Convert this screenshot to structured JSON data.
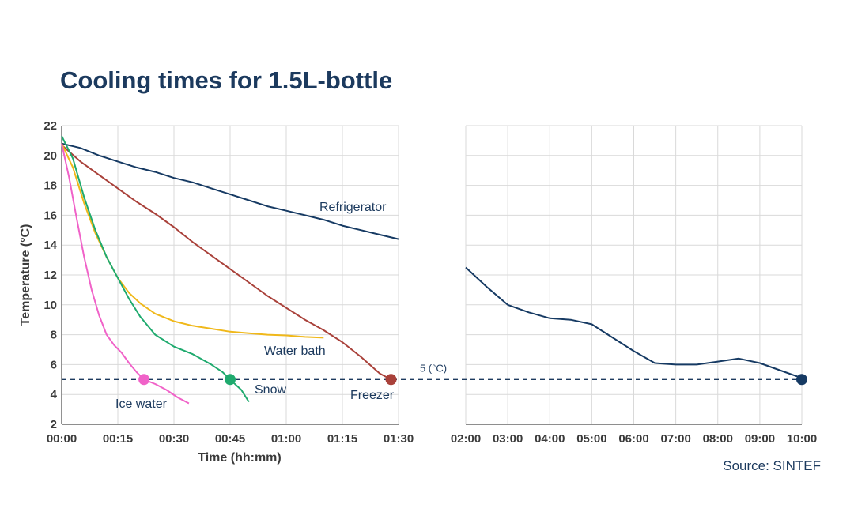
{
  "title_regular": "Cooling times for ",
  "title_bold": "1.5L-bottle",
  "source": "Source: SINTEF",
  "chart_data": {
    "type": "line",
    "xlabel": "Time (hh:mm)",
    "ylabel": "Temperature (°C)",
    "ylim": [
      2,
      22
    ],
    "yticks": [
      2,
      4,
      6,
      8,
      10,
      12,
      14,
      16,
      18,
      20,
      22
    ],
    "grid": true,
    "x_axis_break": true,
    "panels": [
      {
        "range_minutes": [
          0,
          90
        ],
        "ticks": [
          "00:00",
          "00:15",
          "00:30",
          "00:45",
          "01:00",
          "01:15",
          "01:30"
        ]
      },
      {
        "range_minutes": [
          120,
          600
        ],
        "ticks": [
          "02:00",
          "03:00",
          "04:00",
          "05:00",
          "06:00",
          "07:00",
          "08:00",
          "09:00",
          "10:00"
        ]
      }
    ],
    "reference_line": {
      "y": 5,
      "label": "5 (°C)"
    },
    "series": [
      {
        "name": "Refrigerator",
        "color": "#163a63",
        "points": [
          [
            0,
            20.8
          ],
          [
            5,
            20.5
          ],
          [
            10,
            20.0
          ],
          [
            15,
            19.6
          ],
          [
            20,
            19.2
          ],
          [
            25,
            18.9
          ],
          [
            30,
            18.5
          ],
          [
            35,
            18.2
          ],
          [
            40,
            17.8
          ],
          [
            45,
            17.4
          ],
          [
            50,
            17.0
          ],
          [
            55,
            16.6
          ],
          [
            60,
            16.3
          ],
          [
            65,
            16.0
          ],
          [
            70,
            15.7
          ],
          [
            75,
            15.3
          ],
          [
            80,
            15.0
          ],
          [
            85,
            14.7
          ],
          [
            90,
            14.4
          ],
          [
            120,
            12.5
          ],
          [
            150,
            11.2
          ],
          [
            180,
            10.0
          ],
          [
            210,
            9.5
          ],
          [
            240,
            9.1
          ],
          [
            270,
            9.0
          ],
          [
            300,
            8.7
          ],
          [
            330,
            7.8
          ],
          [
            360,
            6.9
          ],
          [
            390,
            6.1
          ],
          [
            420,
            6.0
          ],
          [
            450,
            6.0
          ],
          [
            480,
            6.2
          ],
          [
            510,
            6.4
          ],
          [
            540,
            6.1
          ],
          [
            570,
            5.6
          ],
          [
            600,
            5.1
          ]
        ],
        "marker": [
          600,
          5
        ]
      },
      {
        "name": "Freezer",
        "color": "#a9413a",
        "points": [
          [
            0,
            20.7
          ],
          [
            5,
            19.6
          ],
          [
            10,
            18.7
          ],
          [
            15,
            17.8
          ],
          [
            20,
            16.9
          ],
          [
            25,
            16.1
          ],
          [
            30,
            15.2
          ],
          [
            35,
            14.2
          ],
          [
            40,
            13.3
          ],
          [
            45,
            12.4
          ],
          [
            50,
            11.5
          ],
          [
            55,
            10.6
          ],
          [
            60,
            9.8
          ],
          [
            65,
            9.0
          ],
          [
            70,
            8.3
          ],
          [
            75,
            7.5
          ],
          [
            80,
            6.5
          ],
          [
            85,
            5.4
          ],
          [
            88,
            5.0
          ]
        ],
        "marker": [
          88,
          5
        ]
      },
      {
        "name": "Water bath",
        "color": "#f0b81a",
        "points": [
          [
            0,
            20.8
          ],
          [
            3,
            19.2
          ],
          [
            6,
            16.8
          ],
          [
            9,
            14.8
          ],
          [
            12,
            13.2
          ],
          [
            15,
            11.8
          ],
          [
            18,
            10.8
          ],
          [
            21,
            10.1
          ],
          [
            25,
            9.4
          ],
          [
            30,
            8.9
          ],
          [
            35,
            8.6
          ],
          [
            40,
            8.4
          ],
          [
            45,
            8.2
          ],
          [
            50,
            8.1
          ],
          [
            55,
            8.0
          ],
          [
            60,
            7.95
          ],
          [
            65,
            7.85
          ],
          [
            70,
            7.8
          ]
        ]
      },
      {
        "name": "Snow",
        "color": "#1faa6e",
        "points": [
          [
            0,
            21.3
          ],
          [
            3,
            19.8
          ],
          [
            6,
            17.2
          ],
          [
            9,
            15.0
          ],
          [
            12,
            13.2
          ],
          [
            15,
            11.8
          ],
          [
            18,
            10.4
          ],
          [
            21,
            9.2
          ],
          [
            25,
            8.0
          ],
          [
            30,
            7.2
          ],
          [
            35,
            6.7
          ],
          [
            40,
            6.0
          ],
          [
            43,
            5.5
          ],
          [
            45,
            5.0
          ],
          [
            48,
            4.3
          ],
          [
            50,
            3.5
          ]
        ],
        "marker": [
          45,
          5
        ]
      },
      {
        "name": "Ice water",
        "color": "#f062c8",
        "points": [
          [
            0,
            20.8
          ],
          [
            2,
            18.5
          ],
          [
            4,
            15.8
          ],
          [
            6,
            13.2
          ],
          [
            8,
            11.0
          ],
          [
            10,
            9.3
          ],
          [
            12,
            8.0
          ],
          [
            14,
            7.3
          ],
          [
            16,
            6.8
          ],
          [
            18,
            6.1
          ],
          [
            20,
            5.5
          ],
          [
            22,
            5.0
          ],
          [
            25,
            4.7
          ],
          [
            28,
            4.3
          ],
          [
            31,
            3.8
          ],
          [
            34,
            3.4
          ]
        ],
        "marker": [
          22,
          5
        ]
      }
    ]
  }
}
